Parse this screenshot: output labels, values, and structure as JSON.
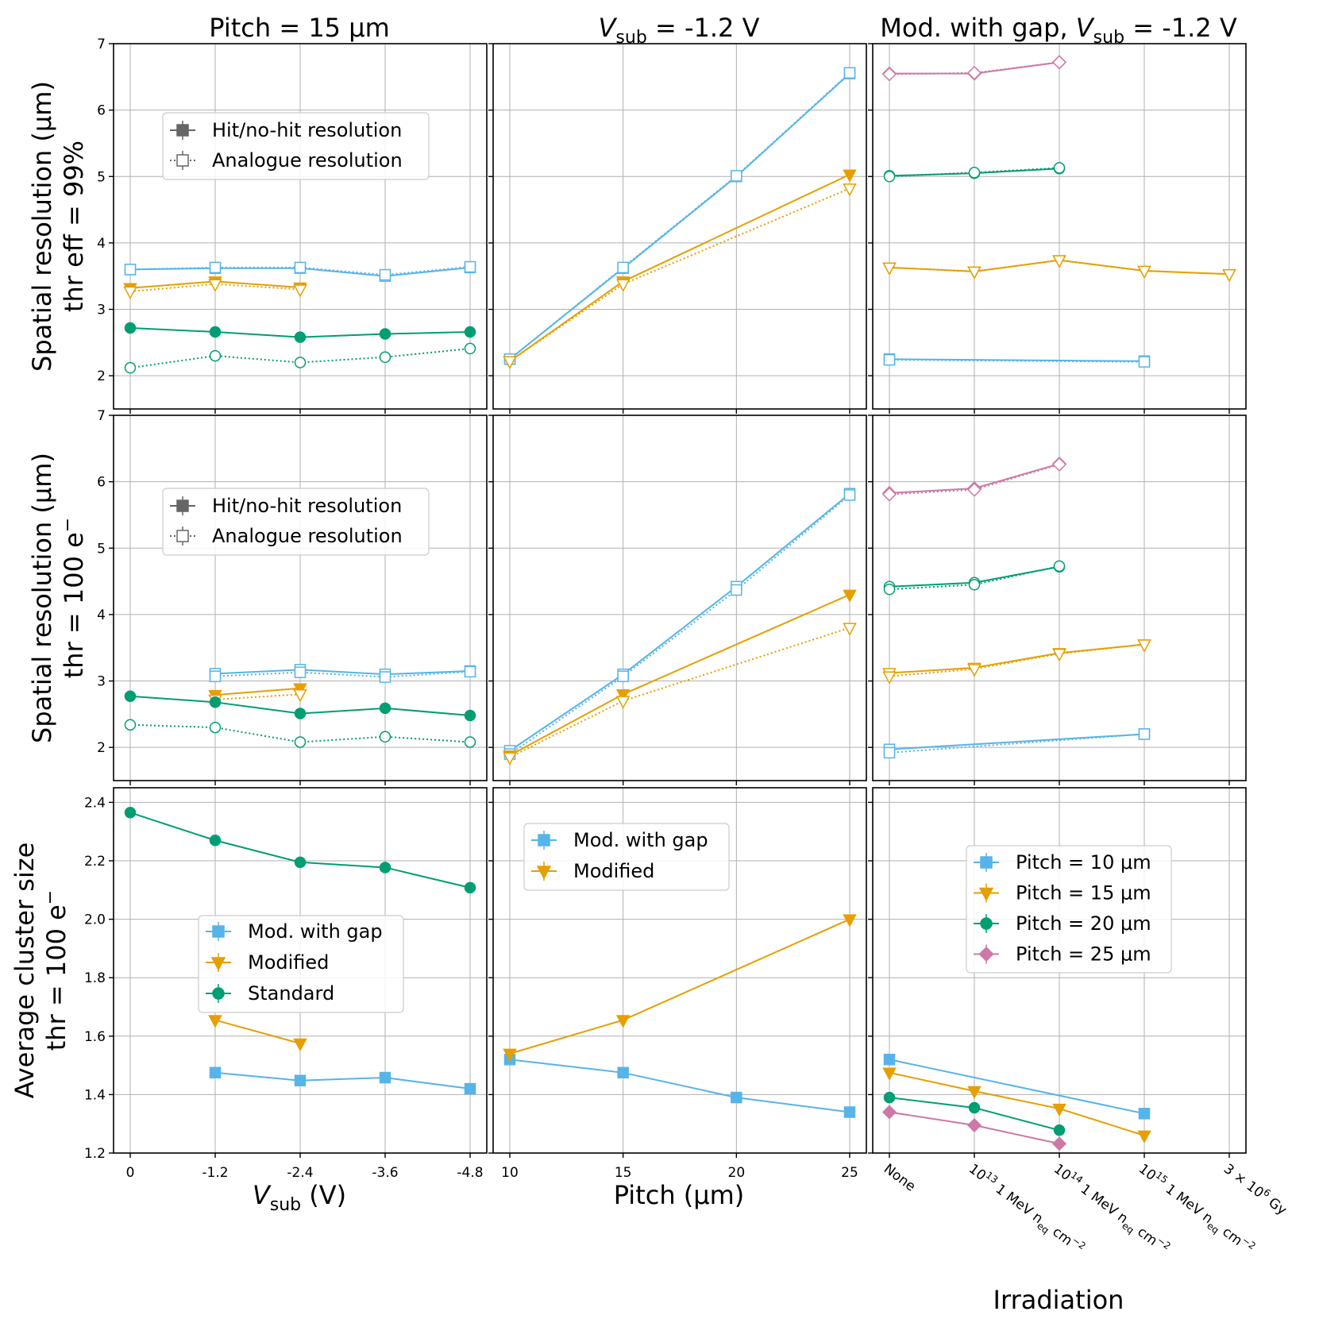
{
  "figure": {
    "col_titles": [
      "Pitch = 15 μm",
      "Vsub = -1.2 V",
      "Mod. with gap, Vsub = -1.2 V"
    ],
    "col_titles_rich": [
      {
        "text": "Pitch = 15 μm"
      },
      {
        "var": "V",
        "sub": "sub",
        "rest": " = -1.2 V"
      },
      {
        "pre": "Mod. with gap, ",
        "var": "V",
        "sub": "sub",
        "rest": " = -1.2 V"
      }
    ],
    "ylabels": [
      {
        "l1": "Spatial resolution (μm)",
        "l2": "thr eff = 99%"
      },
      {
        "l1": "Spatial resolution (μm)",
        "l2": "thr  = 100 e",
        "sup": "−"
      },
      {
        "l1": "Average cluster size",
        "l2": "thr  = 100 e",
        "sup": "−"
      }
    ],
    "xlabels_rich": [
      {
        "var": "V",
        "sub": "sub",
        "rest": " (V)"
      },
      {
        "text": "Pitch (μm)"
      },
      {
        "text": "Irradiation"
      }
    ],
    "colors": {
      "gap": "#56b4e9",
      "modified": "#e69f00",
      "standard": "#009e73",
      "p10": "#56b4e9",
      "p15": "#e69f00",
      "p20": "#009e73",
      "p25": "#cc79a7",
      "legend_gray": "#666666"
    }
  },
  "chart_data": [
    {
      "type": "line",
      "panel": "row1-col1",
      "xlabel": "",
      "ylabel": "Spatial resolution (μm) thr eff = 99%",
      "x_ticks": [
        "0",
        "-1.2",
        "-2.4",
        "-3.6",
        "-4.8"
      ],
      "x": [
        0,
        -1.2,
        -2.4,
        -3.6,
        -4.8
      ],
      "ylim": [
        1.5,
        7
      ],
      "y_ticks": [
        2,
        3,
        4,
        5,
        6,
        7
      ],
      "legend": [
        "Hit/no-hit resolution",
        "Analogue resolution"
      ],
      "series": [
        {
          "color": "gap",
          "style": "hit",
          "marker": "square",
          "values": [
            3.6,
            3.62,
            3.62,
            3.5,
            3.63
          ]
        },
        {
          "color": "gap",
          "style": "analogue",
          "marker": "square",
          "values": [
            3.6,
            3.63,
            3.63,
            3.52,
            3.64
          ]
        },
        {
          "color": "modified",
          "style": "hit",
          "marker": "tri",
          "values": [
            3.32,
            3.42,
            3.33,
            null,
            null
          ]
        },
        {
          "color": "modified",
          "style": "analogue",
          "marker": "tri",
          "values": [
            3.27,
            3.38,
            3.3,
            null,
            null
          ]
        },
        {
          "color": "standard",
          "style": "hit",
          "marker": "circle",
          "values": [
            2.72,
            2.66,
            2.58,
            2.63,
            2.66
          ]
        },
        {
          "color": "standard",
          "style": "analogue",
          "marker": "circle",
          "values": [
            2.12,
            2.3,
            2.2,
            2.28,
            2.41
          ]
        }
      ]
    },
    {
      "type": "line",
      "panel": "row1-col2",
      "x_ticks": [
        "10",
        "15",
        "20",
        "25"
      ],
      "x": [
        10,
        15,
        20,
        25
      ],
      "ylim": [
        1.5,
        7
      ],
      "series": [
        {
          "color": "gap",
          "style": "hit",
          "marker": "square",
          "values": [
            2.25,
            3.62,
            5.0,
            6.55
          ]
        },
        {
          "color": "gap",
          "style": "analogue",
          "marker": "square",
          "values": [
            2.25,
            3.63,
            5.01,
            6.56
          ]
        },
        {
          "color": "modified",
          "style": "hit",
          "marker": "tri",
          "x": [
            10,
            15,
            25
          ],
          "values": [
            2.22,
            3.42,
            5.03
          ]
        },
        {
          "color": "modified",
          "style": "analogue",
          "marker": "tri",
          "x": [
            10,
            15,
            25
          ],
          "values": [
            2.22,
            3.38,
            4.82
          ]
        }
      ]
    },
    {
      "type": "line",
      "panel": "row1-col3",
      "x_ticks": [
        "None",
        "10^13 1 MeV neq cm^-2",
        "10^14 1 MeV neq cm^-2",
        "10^15 1 MeV neq cm^-2",
        "3 × 10^6 Gy"
      ],
      "x": [
        0,
        1,
        2,
        3,
        4
      ],
      "ylim": [
        1.5,
        7
      ],
      "series": [
        {
          "color": "p10",
          "style": "hit",
          "marker": "square",
          "x": [
            0,
            3
          ],
          "values": [
            2.25,
            2.22
          ]
        },
        {
          "color": "p10",
          "style": "analogue",
          "marker": "square",
          "x": [
            0,
            3
          ],
          "values": [
            2.24,
            2.21
          ]
        },
        {
          "color": "p15",
          "style": "hit",
          "marker": "tri",
          "x": [
            0,
            1,
            2,
            3,
            4
          ],
          "values": [
            3.63,
            3.57,
            3.74,
            3.58,
            3.53
          ]
        },
        {
          "color": "p15",
          "style": "analogue",
          "marker": "tri",
          "x": [
            0,
            1,
            2,
            3,
            4
          ],
          "values": [
            3.63,
            3.57,
            3.74,
            3.58,
            3.53
          ]
        },
        {
          "color": "p20",
          "style": "hit",
          "marker": "circle",
          "x": [
            0,
            1,
            2
          ],
          "values": [
            5.01,
            5.05,
            5.12
          ]
        },
        {
          "color": "p20",
          "style": "analogue",
          "marker": "circle",
          "x": [
            0,
            1,
            2
          ],
          "values": [
            5.0,
            5.06,
            5.13
          ]
        },
        {
          "color": "p25",
          "style": "hit",
          "marker": "diamond",
          "x": [
            0,
            1,
            2
          ],
          "values": [
            6.55,
            6.55,
            6.72
          ]
        },
        {
          "color": "p25",
          "style": "analogue",
          "marker": "diamond",
          "x": [
            0,
            1,
            2
          ],
          "values": [
            6.54,
            6.56,
            6.72
          ]
        }
      ]
    },
    {
      "type": "line",
      "panel": "row2-col1",
      "ylabel": "Spatial resolution (μm) thr = 100 e−",
      "x": [
        0,
        -1.2,
        -2.4,
        -3.6,
        -4.8
      ],
      "ylim": [
        1.5,
        7
      ],
      "y_ticks": [
        2,
        3,
        4,
        5,
        6,
        7
      ],
      "legend": [
        "Hit/no-hit resolution",
        "Analogue resolution"
      ],
      "series": [
        {
          "color": "gap",
          "style": "hit",
          "marker": "square",
          "x": [
            -1.2,
            -2.4,
            -3.6,
            -4.8
          ],
          "values": [
            3.11,
            3.17,
            3.1,
            3.15
          ]
        },
        {
          "color": "gap",
          "style": "analogue",
          "marker": "square",
          "x": [
            -1.2,
            -2.4,
            -3.6,
            -4.8
          ],
          "values": [
            3.07,
            3.13,
            3.06,
            3.14
          ]
        },
        {
          "color": "modified",
          "style": "hit",
          "marker": "tri",
          "x": [
            -1.2,
            -2.4
          ],
          "values": [
            2.79,
            2.89
          ]
        },
        {
          "color": "modified",
          "style": "analogue",
          "marker": "tri",
          "x": [
            -1.2,
            -2.4
          ],
          "values": [
            2.72,
            2.8
          ]
        },
        {
          "color": "standard",
          "style": "hit",
          "marker": "circle",
          "x": [
            0,
            -1.2,
            -2.4,
            -3.6,
            -4.8
          ],
          "values": [
            2.77,
            2.68,
            2.51,
            2.59,
            2.48
          ]
        },
        {
          "color": "standard",
          "style": "analogue",
          "marker": "circle",
          "x": [
            0,
            -1.2,
            -2.4,
            -3.6,
            -4.8
          ],
          "values": [
            2.34,
            2.3,
            2.08,
            2.16,
            2.08
          ]
        }
      ]
    },
    {
      "type": "line",
      "panel": "row2-col2",
      "x": [
        10,
        15,
        20,
        25
      ],
      "ylim": [
        1.5,
        7
      ],
      "series": [
        {
          "color": "gap",
          "style": "hit",
          "marker": "square",
          "values": [
            1.95,
            3.1,
            4.42,
            5.82
          ]
        },
        {
          "color": "gap",
          "style": "analogue",
          "marker": "square",
          "values": [
            1.9,
            3.07,
            4.37,
            5.8
          ]
        },
        {
          "color": "modified",
          "style": "hit",
          "marker": "tri",
          "x": [
            10,
            15,
            25
          ],
          "values": [
            1.88,
            2.8,
            4.3
          ]
        },
        {
          "color": "modified",
          "style": "analogue",
          "marker": "tri",
          "x": [
            10,
            15,
            25
          ],
          "values": [
            1.85,
            2.7,
            3.8
          ]
        }
      ]
    },
    {
      "type": "line",
      "panel": "row2-col3",
      "x": [
        0,
        1,
        2,
        3,
        4
      ],
      "ylim": [
        1.5,
        7
      ],
      "series": [
        {
          "color": "p10",
          "style": "hit",
          "marker": "square",
          "x": [
            0,
            3
          ],
          "values": [
            1.97,
            2.2
          ]
        },
        {
          "color": "p10",
          "style": "analogue",
          "marker": "square",
          "x": [
            0,
            3
          ],
          "values": [
            1.92,
            2.2
          ]
        },
        {
          "color": "p15",
          "style": "hit",
          "marker": "tri",
          "x": [
            0,
            1,
            2,
            3
          ],
          "values": [
            3.12,
            3.2,
            3.42,
            3.55
          ]
        },
        {
          "color": "p15",
          "style": "analogue",
          "marker": "tri",
          "x": [
            0,
            1,
            2,
            3
          ],
          "values": [
            3.07,
            3.18,
            3.41,
            3.55
          ]
        },
        {
          "color": "p20",
          "style": "hit",
          "marker": "circle",
          "x": [
            0,
            1,
            2
          ],
          "values": [
            4.42,
            4.48,
            4.72
          ]
        },
        {
          "color": "p20",
          "style": "analogue",
          "marker": "circle",
          "x": [
            0,
            1,
            2
          ],
          "values": [
            4.38,
            4.45,
            4.73
          ]
        },
        {
          "color": "p25",
          "style": "hit",
          "marker": "diamond",
          "x": [
            0,
            1,
            2
          ],
          "values": [
            5.83,
            5.9,
            6.27
          ]
        },
        {
          "color": "p25",
          "style": "analogue",
          "marker": "diamond",
          "x": [
            0,
            1,
            2
          ],
          "values": [
            5.81,
            5.88,
            6.26
          ]
        }
      ]
    },
    {
      "type": "line",
      "panel": "row3-col1",
      "ylabel": "Average cluster size thr = 100 e−",
      "xlabel": "Vsub (V)",
      "x_ticks": [
        "0",
        "-1.2",
        "-2.4",
        "-3.6",
        "-4.8"
      ],
      "x": [
        0,
        -1.2,
        -2.4,
        -3.6,
        -4.8
      ],
      "ylim": [
        1.2,
        2.45
      ],
      "y_ticks": [
        1.2,
        1.4,
        1.6,
        1.8,
        2.0,
        2.2,
        2.4
      ],
      "legend": [
        "Mod. with gap",
        "Modified",
        "Standard"
      ],
      "series": [
        {
          "name": "Mod. with gap",
          "color": "gap",
          "marker": "square",
          "x": [
            -1.2,
            -2.4,
            -3.6,
            -4.8
          ],
          "values": [
            1.475,
            1.448,
            1.458,
            1.42
          ]
        },
        {
          "name": "Modified",
          "color": "modified",
          "marker": "tri",
          "x": [
            -1.2,
            -2.4
          ],
          "values": [
            1.655,
            1.575
          ]
        },
        {
          "name": "Standard",
          "color": "standard",
          "marker": "circle",
          "x": [
            0,
            -1.2,
            -2.4,
            -3.6,
            -4.8
          ],
          "values": [
            2.365,
            2.27,
            2.195,
            2.177,
            2.108
          ]
        }
      ]
    },
    {
      "type": "line",
      "panel": "row3-col2",
      "xlabel": "Pitch (μm)",
      "x_ticks": [
        "10",
        "15",
        "20",
        "25"
      ],
      "x": [
        10,
        15,
        20,
        25
      ],
      "ylim": [
        1.2,
        2.45
      ],
      "legend": [
        "Mod. with gap",
        "Modified"
      ],
      "series": [
        {
          "name": "Mod. with gap",
          "color": "gap",
          "marker": "square",
          "values": [
            1.52,
            1.475,
            1.39,
            1.34
          ]
        },
        {
          "name": "Modified",
          "color": "modified",
          "marker": "tri",
          "x": [
            10,
            15,
            25
          ],
          "values": [
            1.54,
            1.655,
            2.0
          ]
        }
      ]
    },
    {
      "type": "line",
      "panel": "row3-col3",
      "xlabel": "Irradiation",
      "x_ticks": [
        "None",
        "10^13 1 MeV neq cm^-2",
        "10^14 1 MeV neq cm^-2",
        "10^15 1 MeV neq cm^-2",
        "3 × 10^6 Gy"
      ],
      "x": [
        0,
        1,
        2,
        3,
        4
      ],
      "ylim": [
        1.2,
        2.45
      ],
      "legend": [
        "Pitch = 10 μm",
        "Pitch = 15 μm",
        "Pitch = 20 μm",
        "Pitch = 25 μm"
      ],
      "series": [
        {
          "name": "Pitch = 10 μm",
          "color": "p10",
          "marker": "square",
          "x": [
            0,
            3
          ],
          "values": [
            1.52,
            1.335
          ]
        },
        {
          "name": "Pitch = 15 μm",
          "color": "p15",
          "marker": "tri",
          "x": [
            0,
            1,
            2,
            3
          ],
          "values": [
            1.475,
            1.412,
            1.352,
            1.26
          ]
        },
        {
          "name": "Pitch = 20 μm",
          "color": "p20",
          "marker": "circle",
          "x": [
            0,
            1,
            2
          ],
          "values": [
            1.39,
            1.355,
            1.278
          ]
        },
        {
          "name": "Pitch = 25 μm",
          "color": "p25",
          "marker": "diamond",
          "x": [
            0,
            1,
            2
          ],
          "values": [
            1.34,
            1.295,
            1.232
          ]
        }
      ]
    }
  ],
  "tick_text": {
    "col1": [
      "0",
      "-1.2",
      "-2.4",
      "-3.6",
      "-4.8"
    ],
    "col2": [
      "10",
      "15",
      "20",
      "25"
    ],
    "col3": [
      {
        "a": "None",
        "b": "",
        "c": "",
        "d": ""
      },
      {
        "a": "10",
        "b": "13",
        "c": " 1 MeV n",
        "d": "eq",
        "e": " cm",
        "f": "−2"
      },
      {
        "a": "10",
        "b": "14",
        "c": " 1 MeV n",
        "d": "eq",
        "e": " cm",
        "f": "−2"
      },
      {
        "a": "10",
        "b": "15",
        "c": " 1 MeV n",
        "d": "eq",
        "e": " cm",
        "f": "−2"
      },
      {
        "a": "3 × 10",
        "b": "6",
        "c": " Gy",
        "d": ""
      }
    ],
    "res_y": [
      "2",
      "3",
      "4",
      "5",
      "6",
      "7"
    ],
    "cs_y": [
      "1.2",
      "1.4",
      "1.6",
      "1.8",
      "2.0",
      "2.2",
      "2.4"
    ]
  },
  "legends": {
    "res": [
      "Hit/no-hit resolution",
      "Analogue resolution"
    ],
    "cs_col1": [
      "Mod. with gap",
      "Modified",
      "Standard"
    ],
    "cs_col2": [
      "Mod. with gap",
      "Modified"
    ],
    "cs_col3": [
      "Pitch = 10 μm",
      "Pitch = 15 μm",
      "Pitch = 20 μm",
      "Pitch = 25 μm"
    ]
  }
}
